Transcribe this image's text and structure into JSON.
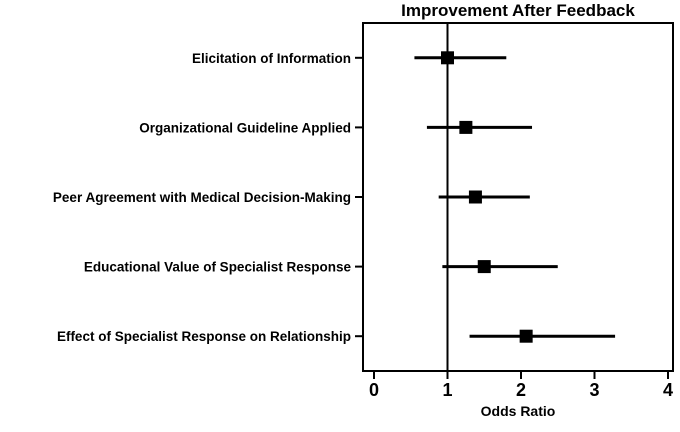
{
  "chart_data": {
    "type": "scatter",
    "variant": "forest-plot",
    "title": "Improvement After Feedback",
    "xlabel": "Odds Ratio",
    "xlim": [
      0,
      4
    ],
    "x_ticks": [
      0,
      1,
      2,
      3,
      4
    ],
    "reference_line_x": 1,
    "grid": false,
    "legend": "none",
    "marker": "filled-square-marker",
    "colors": {
      "foreground": "#000000",
      "background": "#ffffff"
    },
    "categories": [
      "Elicitation of Information",
      "Organizational Guideline Applied",
      "Peer Agreement with Medical Decision-Making",
      "Educational Value of Specialist Response",
      "Effect of Specialist Response on Relationship"
    ],
    "estimates": [
      1.0,
      1.25,
      1.38,
      1.5,
      2.07
    ],
    "ci_low": [
      0.55,
      0.72,
      0.88,
      0.93,
      1.3
    ],
    "ci_high": [
      1.8,
      2.15,
      2.12,
      2.5,
      3.28
    ]
  }
}
